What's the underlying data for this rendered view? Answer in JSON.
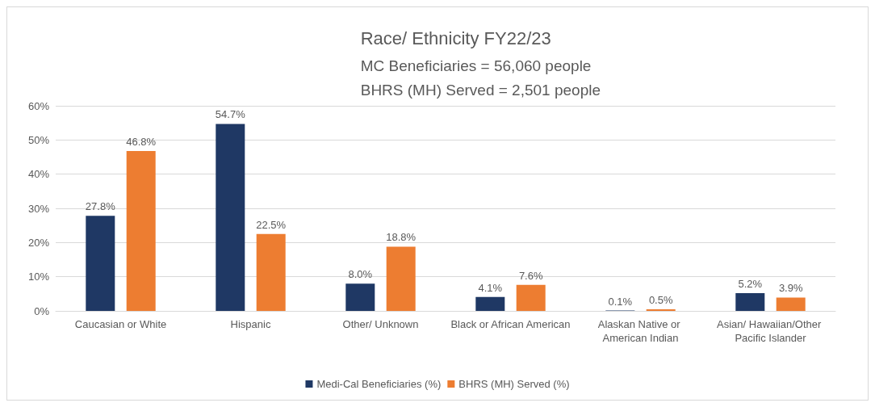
{
  "chart_data": {
    "type": "bar",
    "title": "Race/ Ethnicity FY22/23",
    "subtitle": "MC Beneficiaries = 56,060 people\nBHRS (MH) Served = 2,501 people",
    "categories": [
      "Caucasian or White",
      "Hispanic",
      "Other/ Unknown",
      "Black or African American",
      "Alaskan Native or American Indian",
      "Asian/ Hawaiian/Other Pacific Islander"
    ],
    "series": [
      {
        "name": "Medi-Cal Beneficiaries (%)",
        "color": "#1f3864",
        "values": [
          27.8,
          54.7,
          8.0,
          4.1,
          0.1,
          5.2
        ],
        "value_labels": [
          "27.8%",
          "54.7%",
          "8.0%",
          "4.1%",
          "0.1%",
          "5.2%"
        ]
      },
      {
        "name": "BHRS (MH) Served (%)",
        "color": "#ed7d31",
        "values": [
          46.8,
          22.5,
          18.8,
          7.6,
          0.5,
          3.9
        ],
        "value_labels": [
          "46.8%",
          "22.5%",
          "18.8%",
          "7.6%",
          "0.5%",
          "3.9%"
        ]
      }
    ],
    "ylim": [
      0,
      60
    ],
    "yticks": [
      {
        "value": 0,
        "label": "0%"
      },
      {
        "value": 10,
        "label": "10%"
      },
      {
        "value": 20,
        "label": "20%"
      },
      {
        "value": 30,
        "label": "30%"
      },
      {
        "value": 40,
        "label": "40%"
      },
      {
        "value": 50,
        "label": "50%"
      },
      {
        "value": 60,
        "label": "60%"
      }
    ],
    "grid": "y",
    "legend": "bottom"
  }
}
